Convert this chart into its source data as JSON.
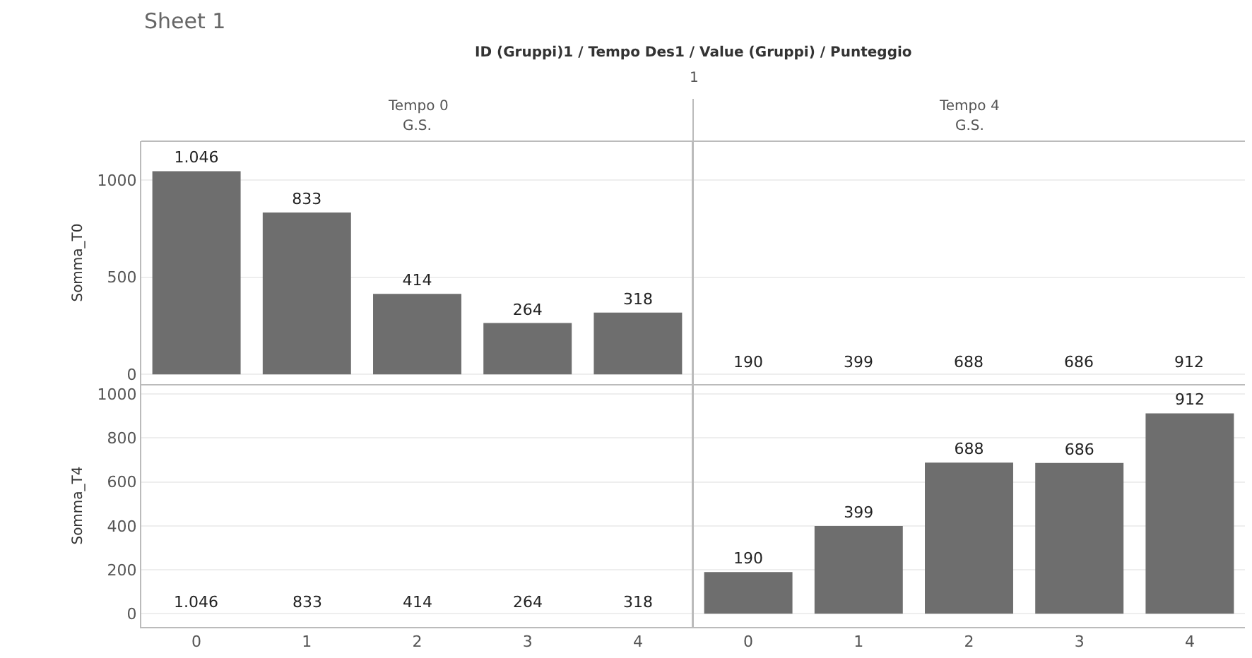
{
  "chart_data": [
    {
      "type": "bar",
      "title": "Sheet 1",
      "subtitle": "ID (Gruppi)1 / Tempo Des1 / Value (Gruppi) / Punteggio",
      "annotations": [
        "1",
        "Tempo 0",
        "G.S."
      ],
      "ylabel": "Somma_T0",
      "categories": [
        "0",
        "1",
        "2",
        "3",
        "4"
      ],
      "values": [
        1046,
        833,
        414,
        264,
        318
      ],
      "value_labels": [
        "1.046",
        "833",
        "414",
        "264",
        "318"
      ],
      "color": "#6e6e6e",
      "ylim": [
        -50,
        1200
      ],
      "yticks": [
        0,
        500,
        1000
      ],
      "grid": "y",
      "tick_labels": "y"
    },
    {
      "type": "bar",
      "annotations": [
        "Tempo 4",
        "G.S."
      ],
      "categories": [
        "0",
        "1",
        "2",
        "3",
        "4"
      ],
      "values": [
        null,
        null,
        null,
        null,
        null
      ],
      "value_labels": [
        "190",
        "399",
        "688",
        "686",
        "912"
      ],
      "color": "#6e6e6e",
      "ylim": [
        -50,
        1200
      ],
      "yticks": [
        0,
        500,
        1000
      ],
      "grid": "y",
      "tick_labels": false
    },
    {
      "type": "bar",
      "ylabel": "Somma_T4",
      "categories": [
        "0",
        "1",
        "2",
        "3",
        "4"
      ],
      "values": [
        null,
        null,
        null,
        null,
        null
      ],
      "value_labels": [
        "1.046",
        "833",
        "414",
        "264",
        "318"
      ],
      "color": "#6e6e6e",
      "ylim": [
        -60,
        1045
      ],
      "yticks": [
        0,
        200,
        400,
        600,
        800,
        1000
      ],
      "grid": "y"
    },
    {
      "type": "bar",
      "categories": [
        "0",
        "1",
        "2",
        "3",
        "4"
      ],
      "values": [
        190,
        399,
        688,
        686,
        912
      ],
      "value_labels": [
        "190",
        "399",
        "688",
        "686",
        "912"
      ],
      "color": "#6e6e6e",
      "ylim": [
        -60,
        1045
      ],
      "yticks": [
        0,
        200,
        400,
        600,
        800,
        1000
      ],
      "grid": "y",
      "tick_labels": "x"
    }
  ]
}
